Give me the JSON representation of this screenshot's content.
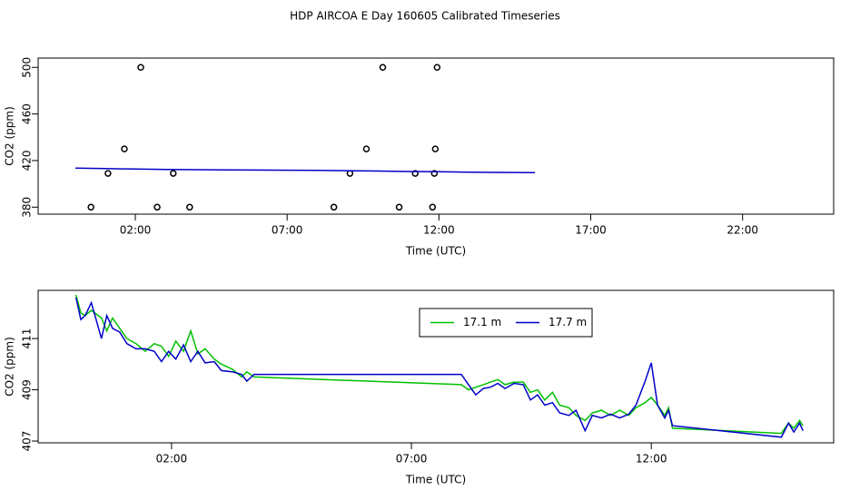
{
  "title": "HDP AIRCOA E  Day 160605  Calibrated Timeseries",
  "chart_data": [
    {
      "type": "scatter",
      "x_label": "Time (UTC)",
      "y_label": "CO2 (ppm)",
      "xlim": [
        -1.2,
        25
      ],
      "ylim": [
        374,
        508
      ],
      "xticks": [
        {
          "value": 2,
          "label": "02:00"
        },
        {
          "value": 7,
          "label": "07:00"
        },
        {
          "value": 12,
          "label": "12:00"
        },
        {
          "value": 17,
          "label": "17:00"
        },
        {
          "value": 22,
          "label": "22:00"
        }
      ],
      "yticks": [
        380,
        420,
        460,
        500
      ],
      "series": [
        {
          "mode": "points",
          "color": "#000000",
          "x": [
            0.54,
            1.1,
            1.64,
            2.18,
            2.72,
            3.25,
            3.79,
            8.54,
            9.07,
            9.61,
            10.15,
            10.69,
            11.22,
            11.79,
            11.85,
            11.88,
            11.94
          ],
          "values": [
            380,
            409,
            430,
            500,
            380,
            409,
            380,
            380,
            409,
            430,
            500,
            380,
            409,
            380,
            409,
            430,
            500
          ]
        },
        {
          "mode": "line",
          "color": "#0000c8",
          "x": [
            0.03,
            1,
            2,
            3,
            5,
            8,
            10,
            11,
            12,
            13,
            14,
            15.16
          ],
          "values": [
            413.5,
            413.1,
            412.7,
            412.3,
            412.0,
            411.6,
            411.0,
            410.6,
            410.4,
            410.1,
            409.8,
            409.6
          ]
        }
      ]
    },
    {
      "type": "line",
      "x_label": "Time (UTC)",
      "y_label": "CO2 (ppm)",
      "xlim": [
        -0.78,
        15.8
      ],
      "ylim": [
        406.93,
        412.88
      ],
      "xticks": [
        {
          "value": 2,
          "label": "02:00"
        },
        {
          "value": 7,
          "label": "07:00"
        },
        {
          "value": 12,
          "label": "12:00"
        }
      ],
      "yticks": [
        407,
        409,
        411
      ],
      "legend": "top",
      "x": [
        0.01,
        0.11,
        0.2,
        0.33,
        0.54,
        0.65,
        0.77,
        0.92,
        1.07,
        1.26,
        1.45,
        1.64,
        1.79,
        1.94,
        2.09,
        2.25,
        2.4,
        2.55,
        2.7,
        2.89,
        3.04,
        3.27,
        3.46,
        3.57,
        3.72,
        8.04,
        8.19,
        8.34,
        8.5,
        8.65,
        8.8,
        8.95,
        9.14,
        9.33,
        9.48,
        9.63,
        9.78,
        9.94,
        10.09,
        10.28,
        10.43,
        10.62,
        10.77,
        10.96,
        11.15,
        11.34,
        11.53,
        11.68,
        11.87,
        12.0,
        12.13,
        12.28,
        12.36,
        12.44,
        14.71,
        14.86,
        14.97,
        15.09,
        15.16
      ],
      "series": [
        {
          "name": "17.1 m",
          "color": "#00c000",
          "values": [
            412.7,
            412.0,
            411.9,
            412.1,
            411.8,
            411.3,
            411.8,
            411.4,
            411.0,
            410.8,
            410.5,
            410.8,
            410.7,
            410.3,
            410.9,
            410.5,
            411.3,
            410.4,
            410.6,
            410.2,
            410.0,
            409.8,
            409.5,
            409.7,
            409.5,
            409.2,
            409.0,
            409.1,
            409.2,
            409.3,
            409.4,
            409.2,
            409.3,
            409.3,
            408.9,
            409.0,
            408.6,
            408.9,
            408.4,
            408.3,
            408.0,
            407.8,
            408.1,
            408.2,
            408.0,
            408.2,
            408.0,
            408.3,
            408.5,
            408.7,
            408.4,
            408.0,
            408.3,
            407.5,
            407.3,
            407.7,
            407.5,
            407.8,
            407.6
          ]
        },
        {
          "name": "17.7 m",
          "color": "#0000c8",
          "values": [
            412.6,
            411.74,
            411.9,
            412.4,
            411.0,
            411.9,
            411.4,
            411.25,
            410.8,
            410.6,
            410.6,
            410.5,
            410.1,
            410.5,
            410.2,
            410.75,
            410.1,
            410.5,
            410.05,
            410.1,
            409.75,
            409.7,
            409.6,
            409.34,
            409.6,
            409.6,
            409.2,
            408.8,
            409.05,
            409.1,
            409.25,
            409.05,
            409.25,
            409.2,
            408.6,
            408.8,
            408.4,
            408.5,
            408.1,
            408.0,
            408.2,
            407.4,
            408.0,
            407.9,
            408.05,
            407.9,
            408.05,
            408.4,
            409.34,
            410.05,
            408.4,
            407.9,
            408.2,
            407.6,
            407.15,
            407.7,
            407.35,
            407.7,
            407.4
          ]
        }
      ]
    }
  ]
}
